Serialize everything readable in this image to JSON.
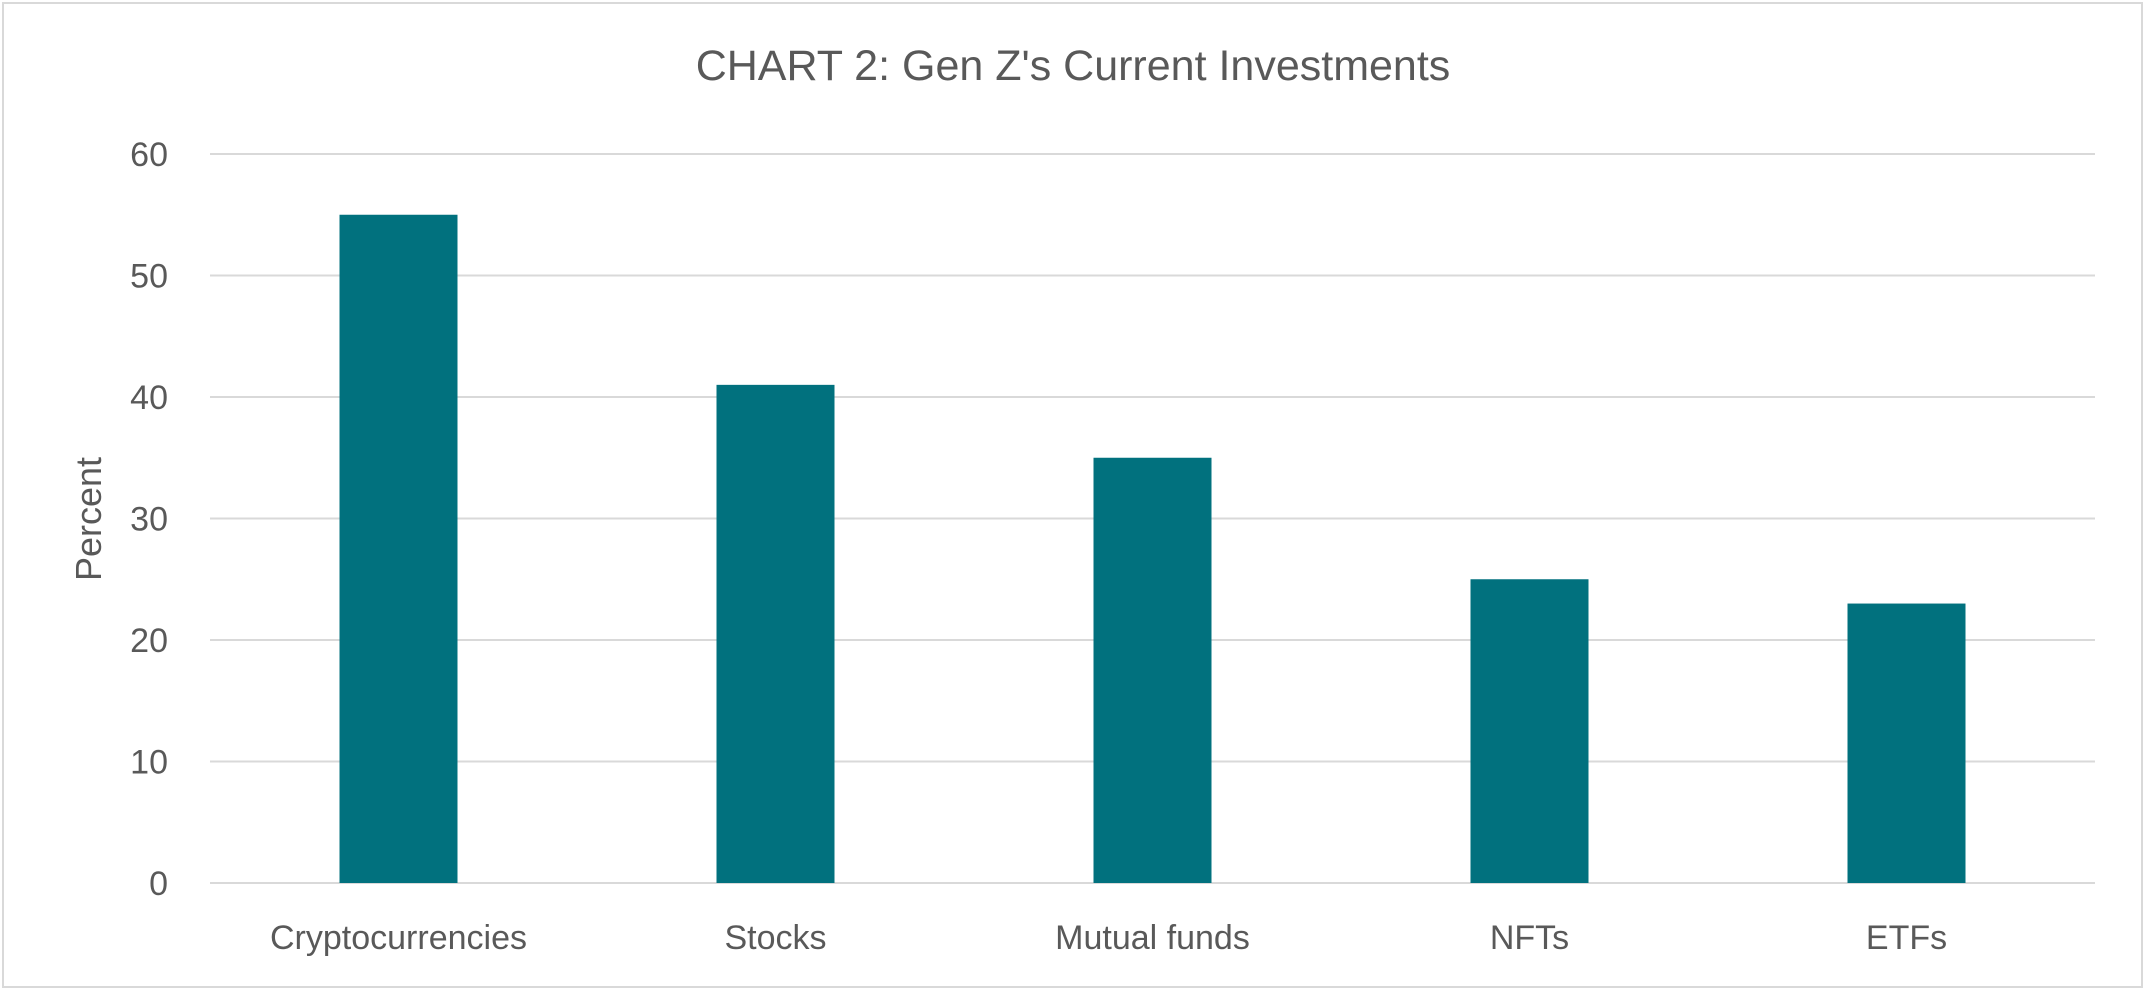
{
  "chart_data": {
    "type": "bar",
    "title": "CHART 2: Gen Z's Current Investments",
    "xlabel": "",
    "ylabel": "Percent",
    "categories": [
      "Cryptocurrencies",
      "Stocks",
      "Mutual funds",
      "NFTs",
      "ETFs"
    ],
    "values": [
      55,
      41,
      35,
      25,
      23
    ],
    "ylim": [
      0,
      60
    ],
    "yticks": [
      0,
      10,
      20,
      30,
      40,
      50,
      60
    ],
    "grid": true,
    "legend": "none",
    "colors": {
      "bar": "#01717e",
      "text": "#595959",
      "grid": "#d9d9d9"
    }
  }
}
